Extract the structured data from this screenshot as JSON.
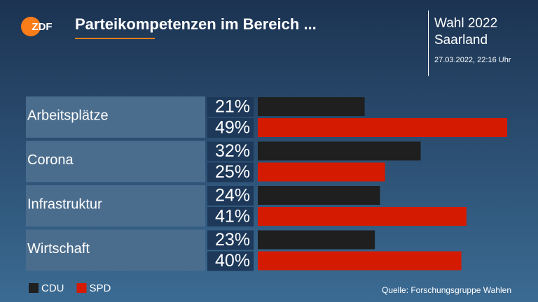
{
  "chart_data": {
    "type": "hbar-grouped",
    "logo": "ZDF",
    "title": "Parteikompetenzen im Bereich ...",
    "headline": "Wahl 2022",
    "region": "Saarland",
    "timestamp": "27.03.2022, 22:16 Uhr",
    "source": "Quelle: Forschungsgruppe Wahlen",
    "categories": [
      "Arbeitsplätze",
      "Corona",
      "Infrastruktur",
      "Wirtschaft"
    ],
    "series": [
      {
        "name": "CDU",
        "color": "#1f1f1f",
        "values": [
          21,
          32,
          24,
          23
        ],
        "value_labels": [
          "21%",
          "32%",
          "24%",
          "23%"
        ]
      },
      {
        "name": "SPD",
        "color": "#d41a00",
        "values": [
          49,
          25,
          41,
          40
        ],
        "value_labels": [
          "49%",
          "25%",
          "41%",
          "40%"
        ]
      }
    ]
  }
}
